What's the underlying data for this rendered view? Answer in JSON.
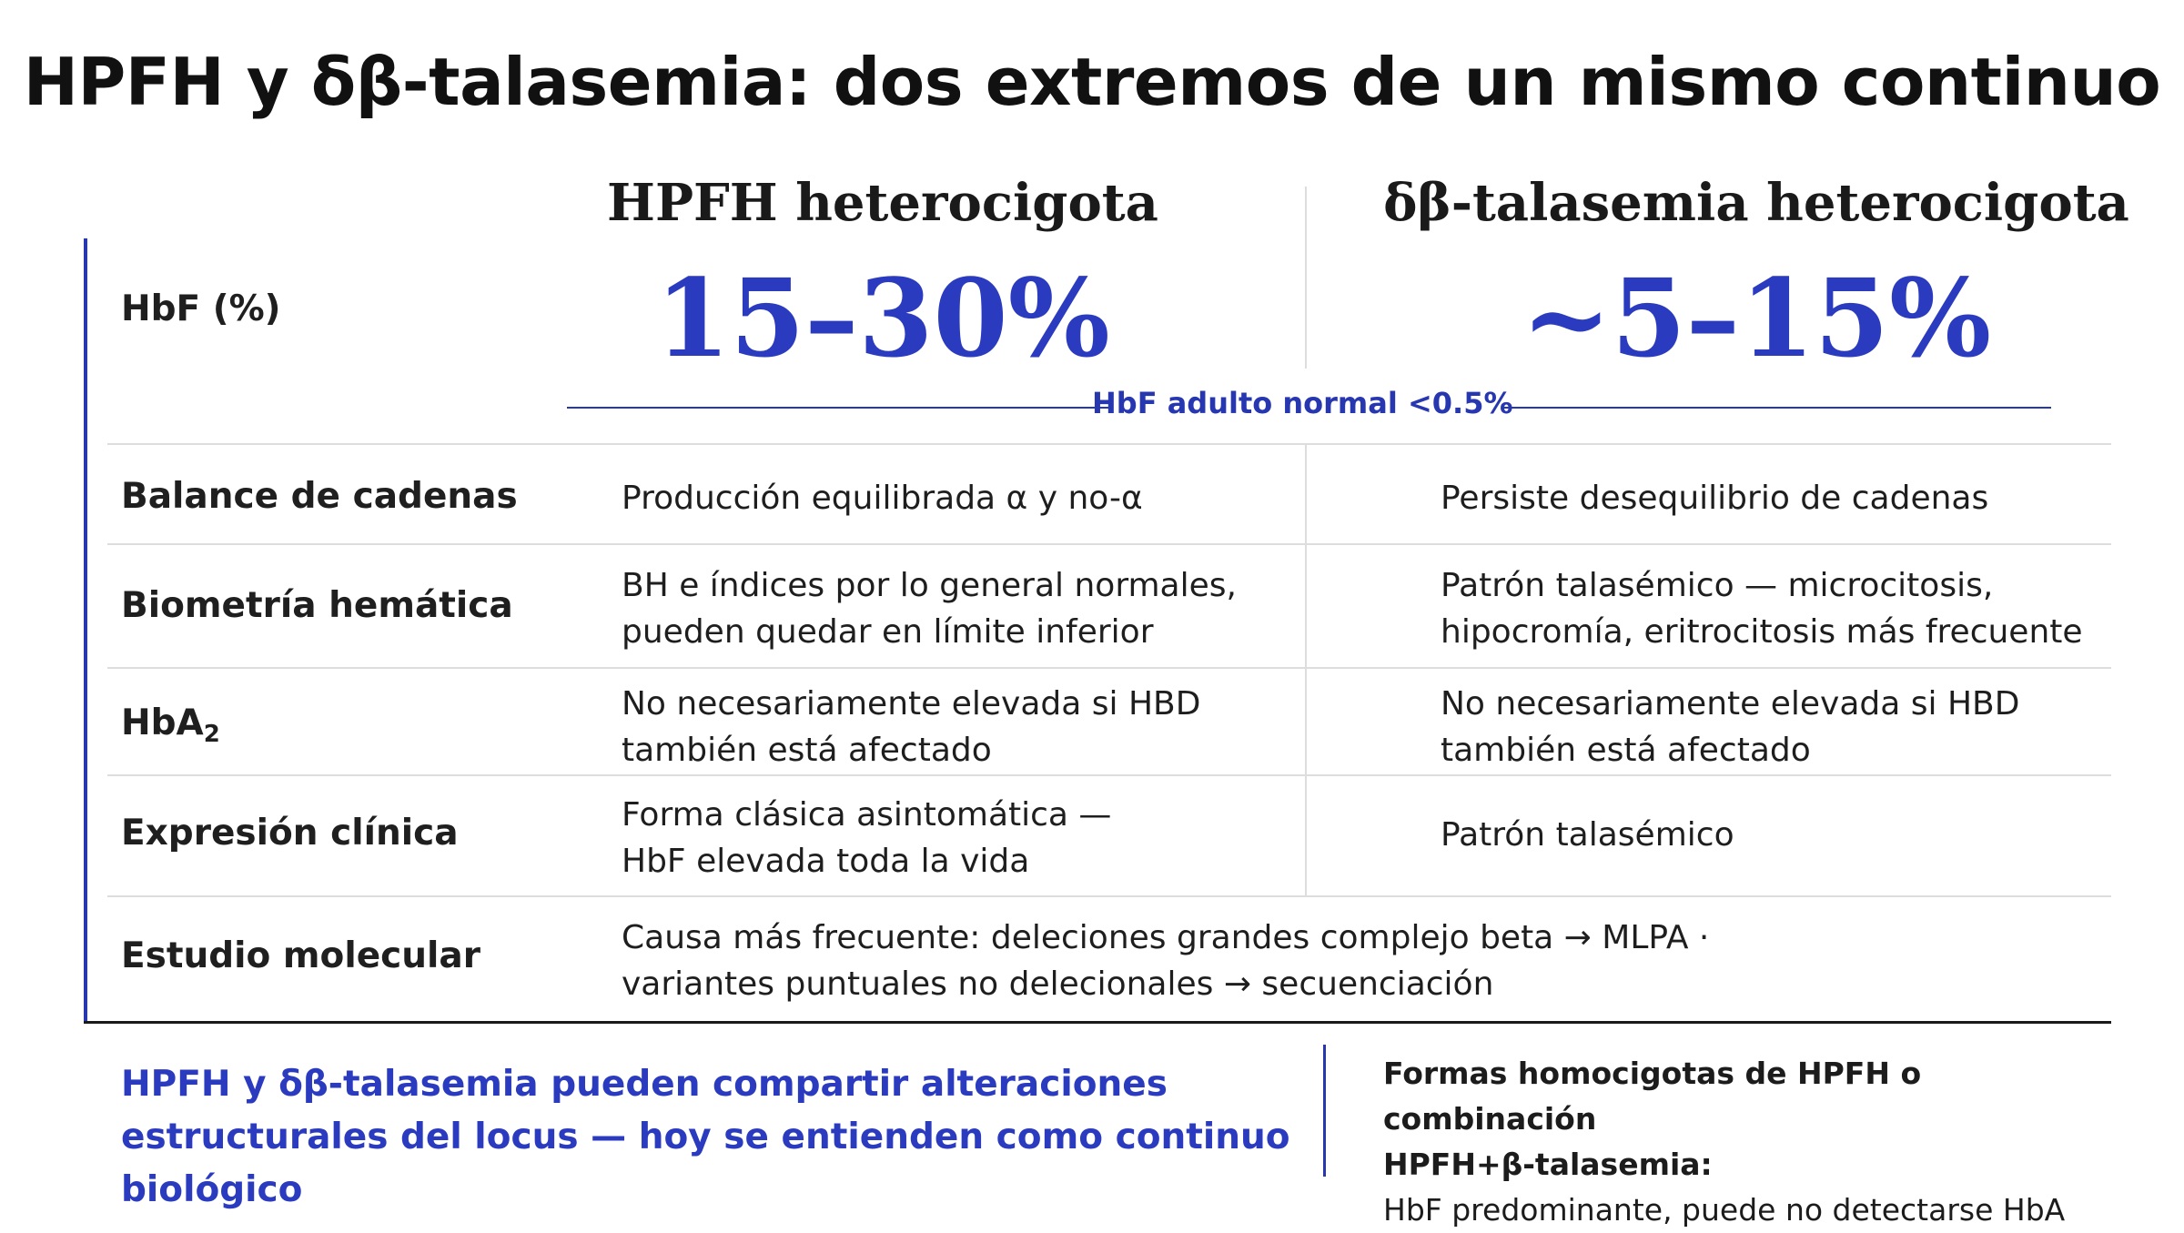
{
  "title": "HPFH y δβ-talasemia: dos extremos de un mismo continuo",
  "columns": {
    "hpfh": {
      "heading": "HPFH heterocigota",
      "hbf": "15–30%"
    },
    "db": {
      "heading": "δβ-talasemia heterocigota",
      "hbf": "~5–15%"
    }
  },
  "hbf_row_label": "HbF (%)",
  "reference": "HbF adulto normal <0.5%",
  "rows": {
    "balance": {
      "label": "Balance de cadenas",
      "hpfh": "Producción equilibrada α y no-α",
      "db": "Persiste desequilibrio de cadenas"
    },
    "biometria": {
      "label": "Biometría hemática",
      "hpfh_1": "BH e índices por lo general normales,",
      "hpfh_2": "pueden quedar en límite inferior",
      "db_1": "Patrón talasémico — microcitosis,",
      "db_2": "hipocromía, eritrocitosis más frecuente"
    },
    "hba2": {
      "label_main": "HbA",
      "label_sub": "2",
      "hpfh_1": "No necesariamente elevada si HBD",
      "hpfh_2": "también está afectado",
      "db_1": "No necesariamente elevada si HBD",
      "db_2": "también está afectado"
    },
    "clinica": {
      "label": "Expresión clínica",
      "hpfh_1": "Forma clásica asintomática —",
      "hpfh_2": "HbF elevada toda la vida",
      "db": "Patrón talasémico"
    },
    "molecular": {
      "label": "Estudio molecular",
      "line_1": "Causa más frecuente: deleciones grandes complejo beta → MLPA ·",
      "line_2": "variantes puntuales no delecionales → secuenciación"
    }
  },
  "footer": {
    "left_1": "HPFH y δβ-talasemia pueden compartir alteraciones",
    "left_2": "estructurales del locus — hoy se entienden como continuo biológico",
    "right_bold_1": "Formas homocigotas de HPFH o combinación",
    "right_bold_2": "HPFH+β-talasemia:",
    "right_text": "HbF predominante, puede no detectarse HbA"
  }
}
